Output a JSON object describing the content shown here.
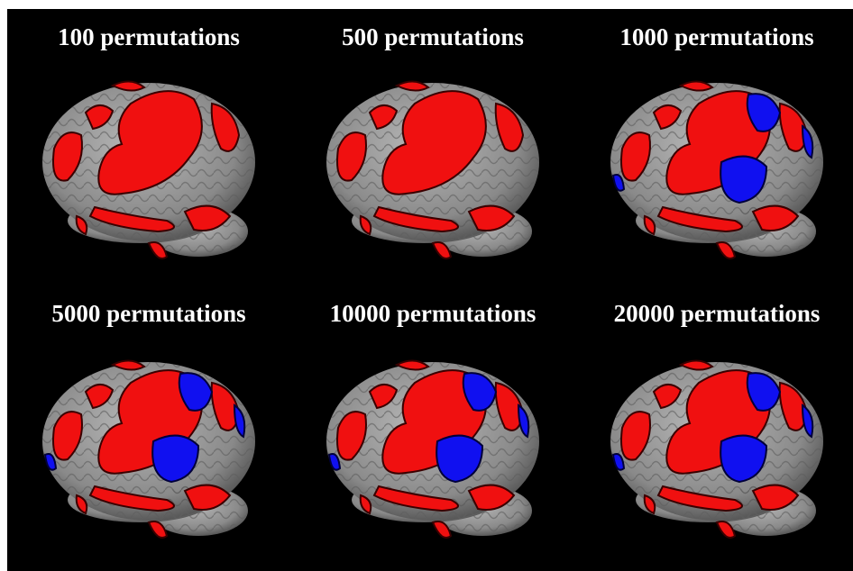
{
  "panels": [
    {
      "label": "100 permutations"
    },
    {
      "label": "500 permutations"
    },
    {
      "label": "1000 permutations"
    },
    {
      "label": "5000 permutations"
    },
    {
      "label": "10000 permutations"
    },
    {
      "label": "20000 permutations"
    }
  ]
}
